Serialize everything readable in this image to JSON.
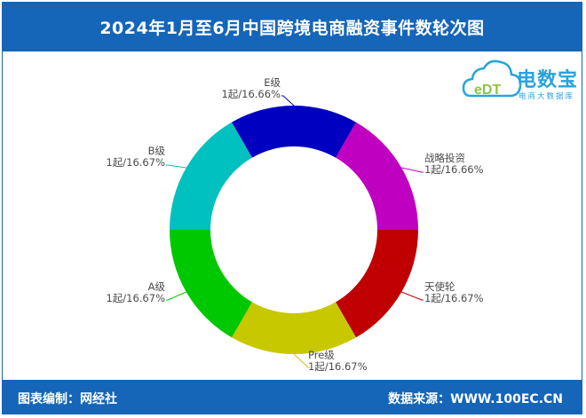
{
  "header": {
    "title": "2024年1月至6月中国跨境电商融资事件数轮次图"
  },
  "footer": {
    "left": "图表编制：网经社",
    "right": "数据来源：WWW.100EC.CN"
  },
  "logo": {
    "mark": "eDT",
    "brand": "电数宝",
    "sub": "电商大数据库"
  },
  "chart_data": {
    "type": "pie",
    "variant": "donut",
    "categories": [
      "战略投资",
      "天使轮",
      "Pre级",
      "A级",
      "B级",
      "E级"
    ],
    "values": [
      1,
      1,
      1,
      1,
      1,
      1
    ],
    "unit": "起",
    "labels": [
      {
        "name": "战略投资",
        "value": "1起/16.66%"
      },
      {
        "name": "天使轮",
        "value": "1起/16.67%"
      },
      {
        "name": "Pre级",
        "value": "1起/16.67%"
      },
      {
        "name": "A级",
        "value": "1起/16.67%"
      },
      {
        "name": "B级",
        "value": "1起/16.67%"
      },
      {
        "name": "E级",
        "value": "1起/16.66%"
      }
    ],
    "colors": [
      "#c000c0",
      "#c00000",
      "#c8c800",
      "#00c800",
      "#00c0c0",
      "#0000c0"
    ]
  }
}
